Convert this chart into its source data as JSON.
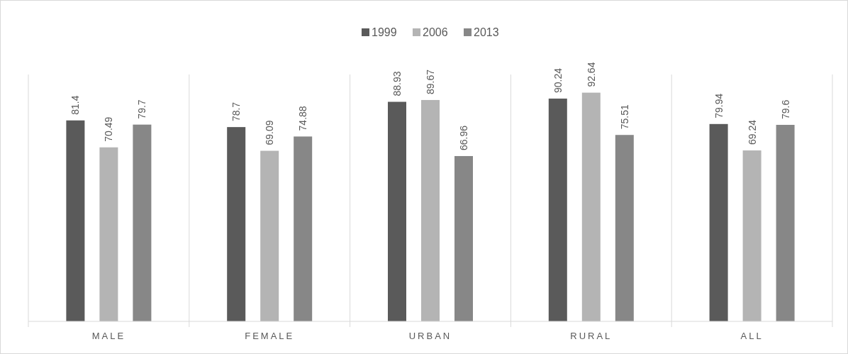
{
  "chart_data": {
    "type": "bar",
    "categories": [
      "MALE",
      "FEMALE",
      "URBAN",
      "RURAL",
      "ALL"
    ],
    "series": [
      {
        "name": "1999",
        "color": "#5a5a5a",
        "values": [
          81.4,
          78.7,
          88.93,
          90.24,
          79.94
        ]
      },
      {
        "name": "2006",
        "color": "#b4b4b4",
        "values": [
          70.49,
          69.09,
          89.67,
          92.64,
          69.24
        ]
      },
      {
        "name": "2013",
        "color": "#878787",
        "values": [
          79.7,
          74.88,
          66.96,
          75.51,
          79.6
        ]
      }
    ],
    "data_labels": true,
    "grid": "x",
    "legend": "top"
  }
}
